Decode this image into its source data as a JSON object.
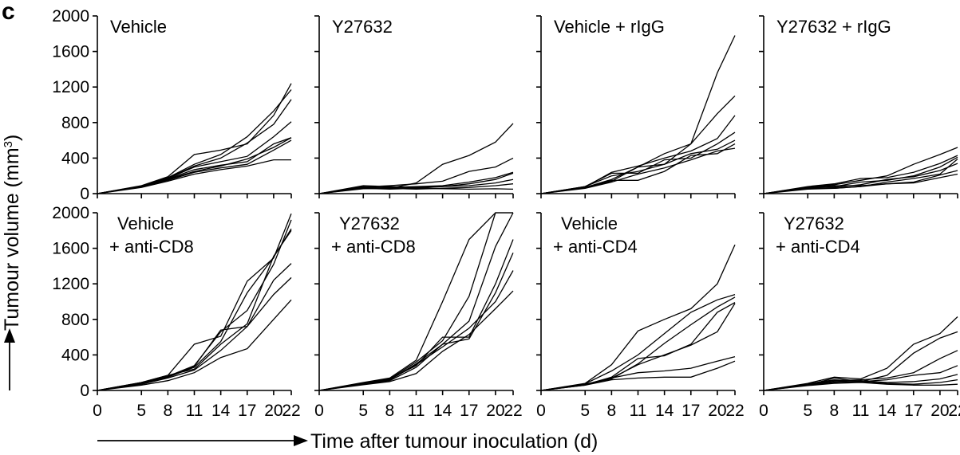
{
  "panel_letter": "c",
  "chart_data": {
    "type": "line",
    "ylabel": "Tumour volume (mm3)",
    "xlabel": "Time after tumour inoculation (d)",
    "x": [
      0,
      5,
      8,
      11,
      14,
      17,
      20,
      22
    ],
    "xticks": [
      "0",
      "5",
      "8",
      "11",
      "14",
      "17",
      "20",
      "22"
    ],
    "yticks": [
      "0",
      "400",
      "800",
      "1200",
      "1600",
      "2000"
    ],
    "ylim": [
      0,
      2000
    ],
    "xlim": [
      0,
      22
    ],
    "grid": false,
    "panels": [
      {
        "title_lines": [
          "Vehicle"
        ],
        "series": [
          {
            "values": [
              0,
              90,
              190,
              440,
              490,
              560,
              880,
              1240
            ]
          },
          {
            "values": [
              0,
              85,
              180,
              330,
              440,
              640,
              930,
              1170
            ]
          },
          {
            "values": [
              0,
              80,
              175,
              310,
              400,
              570,
              780,
              1060
            ]
          },
          {
            "values": [
              0,
              85,
              170,
              300,
              360,
              420,
              640,
              810
            ]
          },
          {
            "values": [
              0,
              80,
              160,
              250,
              310,
              390,
              520,
              630
            ]
          },
          {
            "values": [
              0,
              75,
              150,
              240,
              290,
              330,
              490,
              600
            ]
          },
          {
            "values": [
              0,
              70,
              140,
              220,
              270,
              310,
              380,
              380
            ]
          },
          {
            "values": [
              0,
              80,
              165,
              270,
              320,
              360,
              560,
              630
            ]
          }
        ]
      },
      {
        "title_lines": [
          "Y27632"
        ],
        "series": [
          {
            "values": [
              0,
              80,
              60,
              120,
              330,
              430,
              580,
              790
            ]
          },
          {
            "values": [
              0,
              75,
              90,
              110,
              140,
              250,
              300,
              400
            ]
          },
          {
            "values": [
              0,
              70,
              70,
              80,
              90,
              130,
              180,
              240
            ]
          },
          {
            "values": [
              0,
              90,
              80,
              70,
              80,
              110,
              160,
              230
            ]
          },
          {
            "values": [
              0,
              60,
              50,
              60,
              80,
              90,
              120,
              160
            ]
          },
          {
            "values": [
              0,
              55,
              60,
              50,
              60,
              70,
              90,
              110
            ]
          },
          {
            "values": [
              0,
              65,
              70,
              60,
              55,
              50,
              55,
              50
            ]
          }
        ]
      },
      {
        "title_lines": [
          "Vehicle + rIgG"
        ],
        "series": [
          {
            "values": [
              0,
              80,
              200,
              250,
              330,
              560,
              1360,
              1780
            ]
          },
          {
            "values": [
              0,
              70,
              160,
              300,
              450,
              560,
              900,
              1100
            ]
          },
          {
            "values": [
              0,
              75,
              240,
              310,
              400,
              480,
              620,
              880
            ]
          },
          {
            "values": [
              0,
              80,
              230,
              230,
              380,
              400,
              560,
              690
            ]
          },
          {
            "values": [
              0,
              70,
              140,
              300,
              330,
              450,
              500,
              600
            ]
          },
          {
            "values": [
              0,
              65,
              150,
              150,
              250,
              430,
              450,
              560
            ]
          },
          {
            "values": [
              0,
              60,
              130,
              220,
              290,
              380,
              480,
              510
            ]
          }
        ]
      },
      {
        "title_lines": [
          "Y27632 + rIgG"
        ],
        "series": [
          {
            "values": [
              0,
              70,
              100,
              150,
              200,
              330,
              440,
              520
            ]
          },
          {
            "values": [
              0,
              80,
              110,
              170,
              180,
              240,
              340,
              430
            ]
          },
          {
            "values": [
              0,
              60,
              80,
              130,
              150,
              200,
              300,
              410
            ]
          },
          {
            "values": [
              0,
              75,
              70,
              100,
              160,
              190,
              260,
              340
            ]
          },
          {
            "values": [
              0,
              60,
              60,
              80,
              110,
              130,
              210,
              260
            ]
          },
          {
            "values": [
              0,
              70,
              90,
              90,
              110,
              120,
              180,
              220
            ]
          },
          {
            "values": [
              0,
              50,
              60,
              80,
              130,
              170,
              220,
              390
            ]
          }
        ]
      },
      {
        "title_lines": [
          "Vehicle",
          "+ anti-CD8"
        ],
        "series": [
          {
            "values": [
              0,
              90,
              170,
              520,
              610,
              1230,
              1490,
              1990
            ]
          },
          {
            "values": [
              0,
              85,
              160,
              280,
              660,
              900,
              1420,
              1920
            ]
          },
          {
            "values": [
              0,
              80,
              150,
              260,
              550,
              1100,
              1500,
              1820
            ]
          },
          {
            "values": [
              0,
              90,
              170,
              240,
              520,
              750,
              1510,
              1800
            ]
          },
          {
            "values": [
              0,
              80,
              150,
              270,
              680,
              720,
              1240,
              1430
            ]
          },
          {
            "values": [
              0,
              70,
              140,
              230,
              450,
              720,
              1080,
              1270
            ]
          },
          {
            "values": [
              0,
              60,
              110,
              200,
              370,
              470,
              800,
              1020
            ]
          }
        ]
      },
      {
        "title_lines": [
          "Y27632",
          "+ anti-CD8"
        ],
        "series": [
          {
            "values": [
              0,
              90,
              140,
              340,
              1000,
              1700,
              2000,
              2000
            ]
          },
          {
            "values": [
              0,
              85,
              130,
              320,
              560,
              1060,
              2000,
              2000
            ]
          },
          {
            "values": [
              0,
              80,
              120,
              300,
              520,
              780,
              1620,
              2000
            ]
          },
          {
            "values": [
              0,
              75,
              130,
              280,
              600,
              600,
              1200,
              1700
            ]
          },
          {
            "values": [
              0,
              70,
              110,
              260,
              520,
              580,
              1100,
              1550
            ]
          },
          {
            "values": [
              0,
              75,
              120,
              290,
              490,
              700,
              1000,
              1350
            ]
          },
          {
            "values": [
              0,
              65,
              100,
              190,
              440,
              630,
              920,
              1120
            ]
          }
        ]
      },
      {
        "title_lines": [
          "Vehicle",
          "+ anti-CD4"
        ],
        "series": [
          {
            "values": [
              0,
              80,
              290,
              670,
              800,
              920,
              1200,
              1640
            ]
          },
          {
            "values": [
              0,
              75,
              220,
              400,
              640,
              880,
              1020,
              1080
            ]
          },
          {
            "values": [
              0,
              70,
              130,
              300,
              530,
              740,
              940,
              1050
            ]
          },
          {
            "values": [
              0,
              65,
              150,
              360,
              390,
              520,
              880,
              990
            ]
          },
          {
            "values": [
              0,
              60,
              140,
              290,
              400,
              510,
              660,
              980
            ]
          },
          {
            "values": [
              0,
              70,
              140,
              200,
              220,
              250,
              330,
              380
            ]
          },
          {
            "values": [
              0,
              60,
              120,
              140,
              150,
              150,
              250,
              330
            ]
          }
        ]
      },
      {
        "title_lines": [
          "Y27632",
          "+ anti-CD4"
        ],
        "series": [
          {
            "values": [
              0,
              80,
              150,
              130,
              250,
              520,
              640,
              830
            ]
          },
          {
            "values": [
              0,
              75,
              120,
              100,
              170,
              420,
              590,
              660
            ]
          },
          {
            "values": [
              0,
              70,
              110,
              120,
              140,
              200,
              360,
              450
            ]
          },
          {
            "values": [
              0,
              60,
              140,
              100,
              120,
              170,
              200,
              280
            ]
          },
          {
            "values": [
              0,
              65,
              100,
              110,
              90,
              100,
              130,
              180
            ]
          },
          {
            "values": [
              0,
              60,
              90,
              100,
              80,
              70,
              90,
              120
            ]
          },
          {
            "values": [
              0,
              55,
              80,
              90,
              70,
              60,
              60,
              70
            ]
          }
        ]
      }
    ]
  }
}
